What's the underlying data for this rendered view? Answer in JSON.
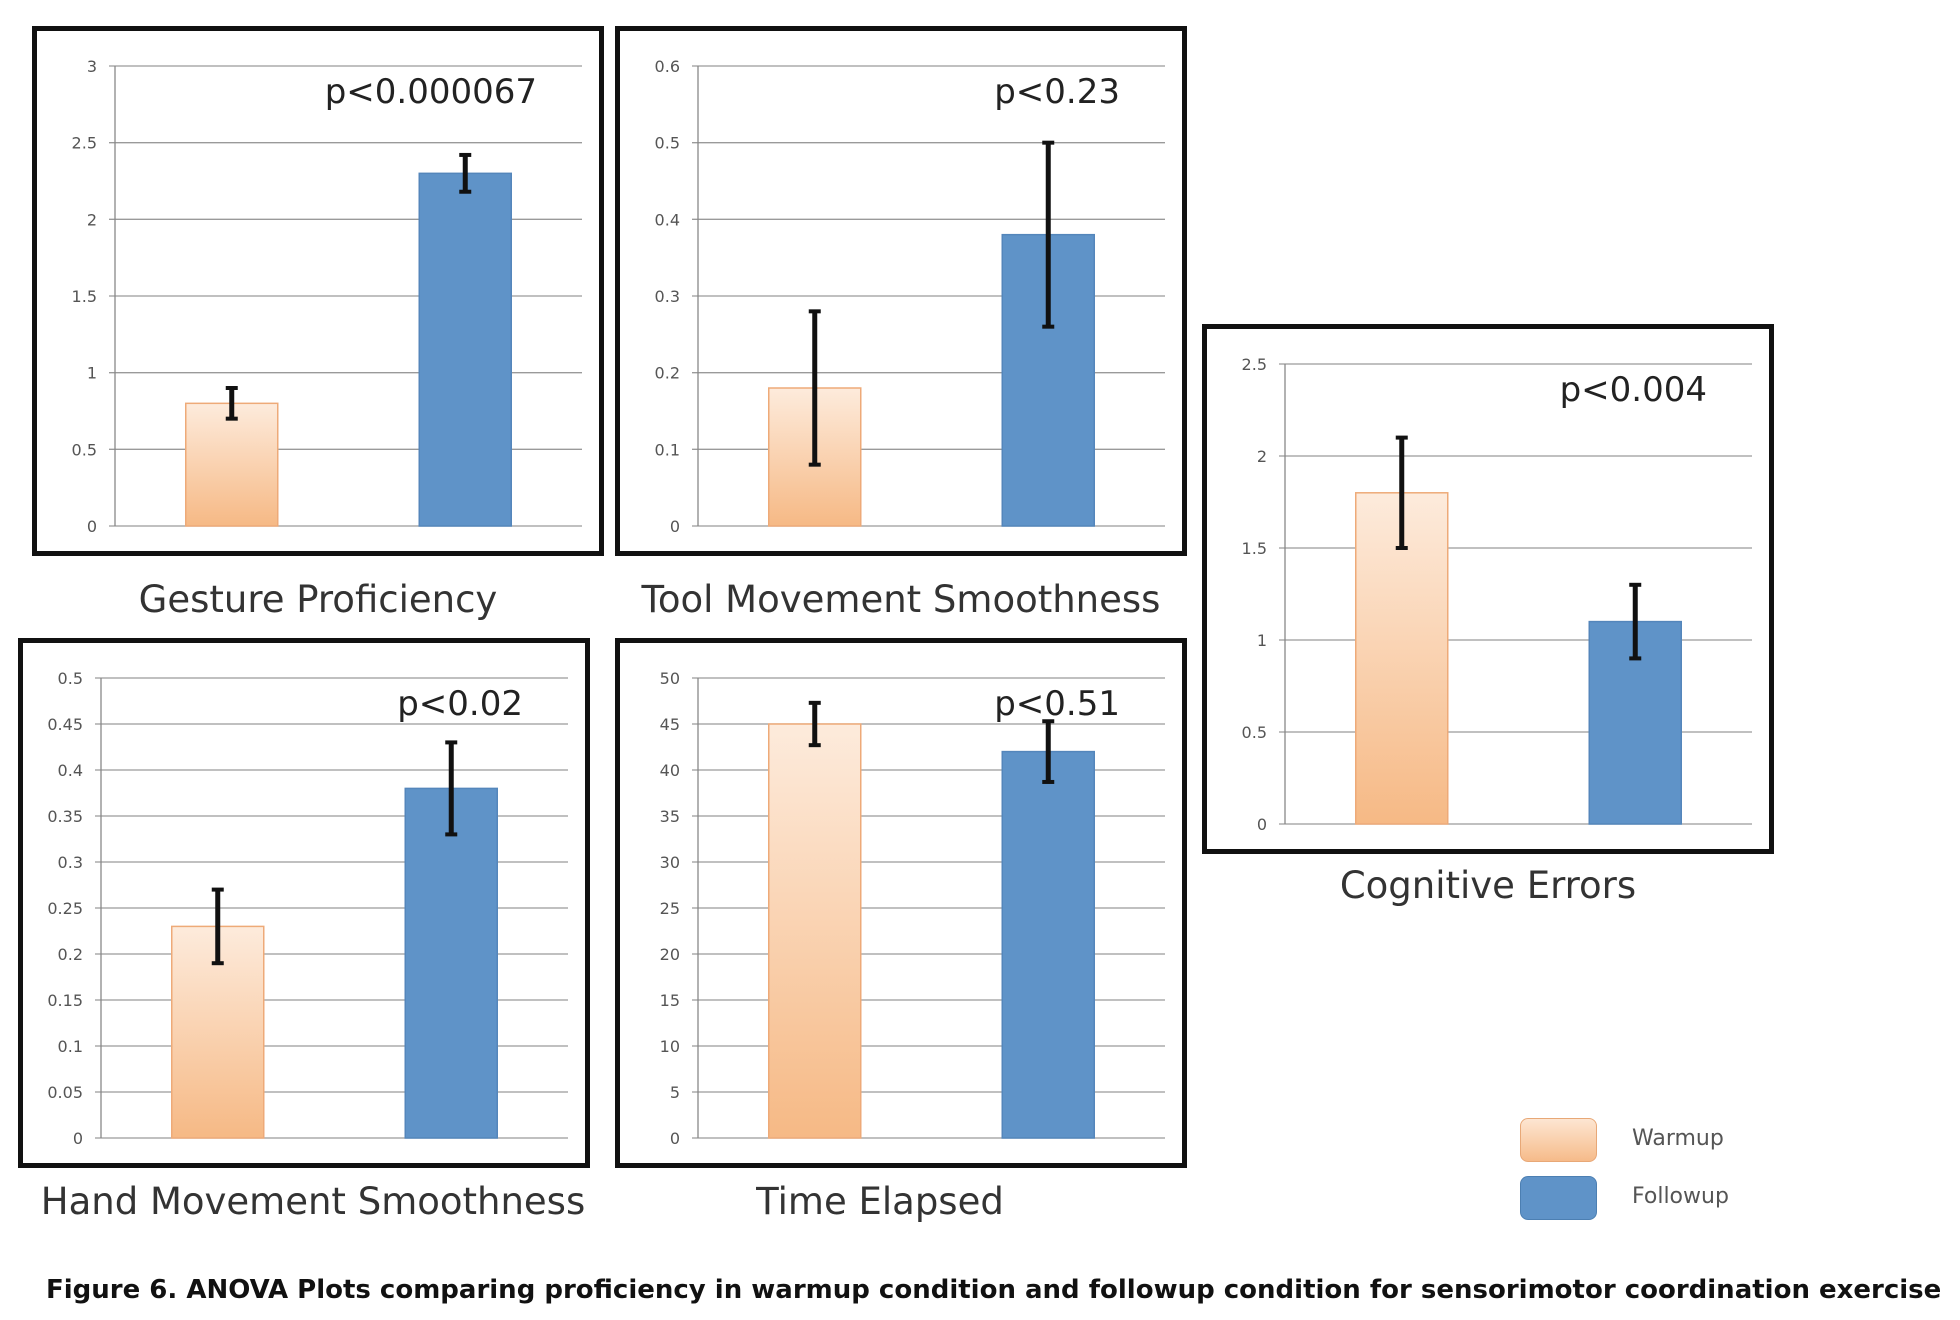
{
  "chart_data": [
    {
      "type": "bar",
      "title": "Gesture Proficiency",
      "annotation": "p<0.000067",
      "categories": [
        "Warmup",
        "Followup"
      ],
      "values": [
        0.8,
        2.3
      ],
      "error": [
        0.1,
        0.12
      ],
      "ylim": [
        0,
        3
      ],
      "yticks": [
        0,
        0.5,
        1,
        1.5,
        2,
        2.5,
        3
      ],
      "ytick_labels": [
        "0",
        "0.5",
        "1",
        "1.5",
        "2",
        "2.5",
        "3"
      ]
    },
    {
      "type": "bar",
      "title": "Tool Movement Smoothness",
      "annotation": "p<0.23",
      "categories": [
        "Warmup",
        "Followup"
      ],
      "values": [
        0.18,
        0.38
      ],
      "error": [
        0.1,
        0.12
      ],
      "ylim": [
        0,
        0.6
      ],
      "yticks": [
        0,
        0.1,
        0.2,
        0.3,
        0.4,
        0.5,
        0.6
      ],
      "ytick_labels": [
        "0",
        "0.1",
        "0.2",
        "0.3",
        "0.4",
        "0.5",
        "0.6"
      ]
    },
    {
      "type": "bar",
      "title": "Cognitive Errors",
      "annotation": "p<0.004",
      "categories": [
        "Warmup",
        "Followup"
      ],
      "values": [
        1.8,
        1.1
      ],
      "error": [
        0.3,
        0.2
      ],
      "ylim": [
        0,
        2.5
      ],
      "yticks": [
        0,
        0.5,
        1,
        1.5,
        2,
        2.5
      ],
      "ytick_labels": [
        "0",
        "0.5",
        "1",
        "1.5",
        "2",
        "2.5"
      ]
    },
    {
      "type": "bar",
      "title": "Hand Movement Smoothness",
      "annotation": "p<0.02",
      "categories": [
        "Warmup",
        "Followup"
      ],
      "values": [
        0.23,
        0.38
      ],
      "error": [
        0.04,
        0.05
      ],
      "ylim": [
        0,
        0.5
      ],
      "yticks": [
        0,
        0.05,
        0.1,
        0.15,
        0.2,
        0.25,
        0.3,
        0.35,
        0.4,
        0.45,
        0.5
      ],
      "ytick_labels": [
        "0",
        "0.05",
        "0.1",
        "0.15",
        "0.2",
        "0.25",
        "0.3",
        "0.35",
        "0.4",
        "0.45",
        "0.5"
      ]
    },
    {
      "type": "bar",
      "title": "Time Elapsed",
      "annotation": "p<0.51",
      "categories": [
        "Warmup",
        "Followup"
      ],
      "values": [
        45,
        42
      ],
      "error": [
        2.3,
        3.3
      ],
      "ylim": [
        0,
        50
      ],
      "yticks": [
        0,
        5,
        10,
        15,
        20,
        25,
        30,
        35,
        40,
        45,
        50
      ],
      "ytick_labels": [
        "0",
        "5",
        "10",
        "15",
        "20",
        "25",
        "30",
        "35",
        "40",
        "45",
        "50"
      ]
    }
  ],
  "legend": {
    "items": [
      {
        "label": "Warmup",
        "color": "#f6bb8a"
      },
      {
        "label": "Followup",
        "color": "#5f93c8"
      }
    ]
  },
  "caption": "Figure 6. ANOVA Plots comparing proficiency in warmup condition and followup condition for sensorimotor coordination exercise"
}
